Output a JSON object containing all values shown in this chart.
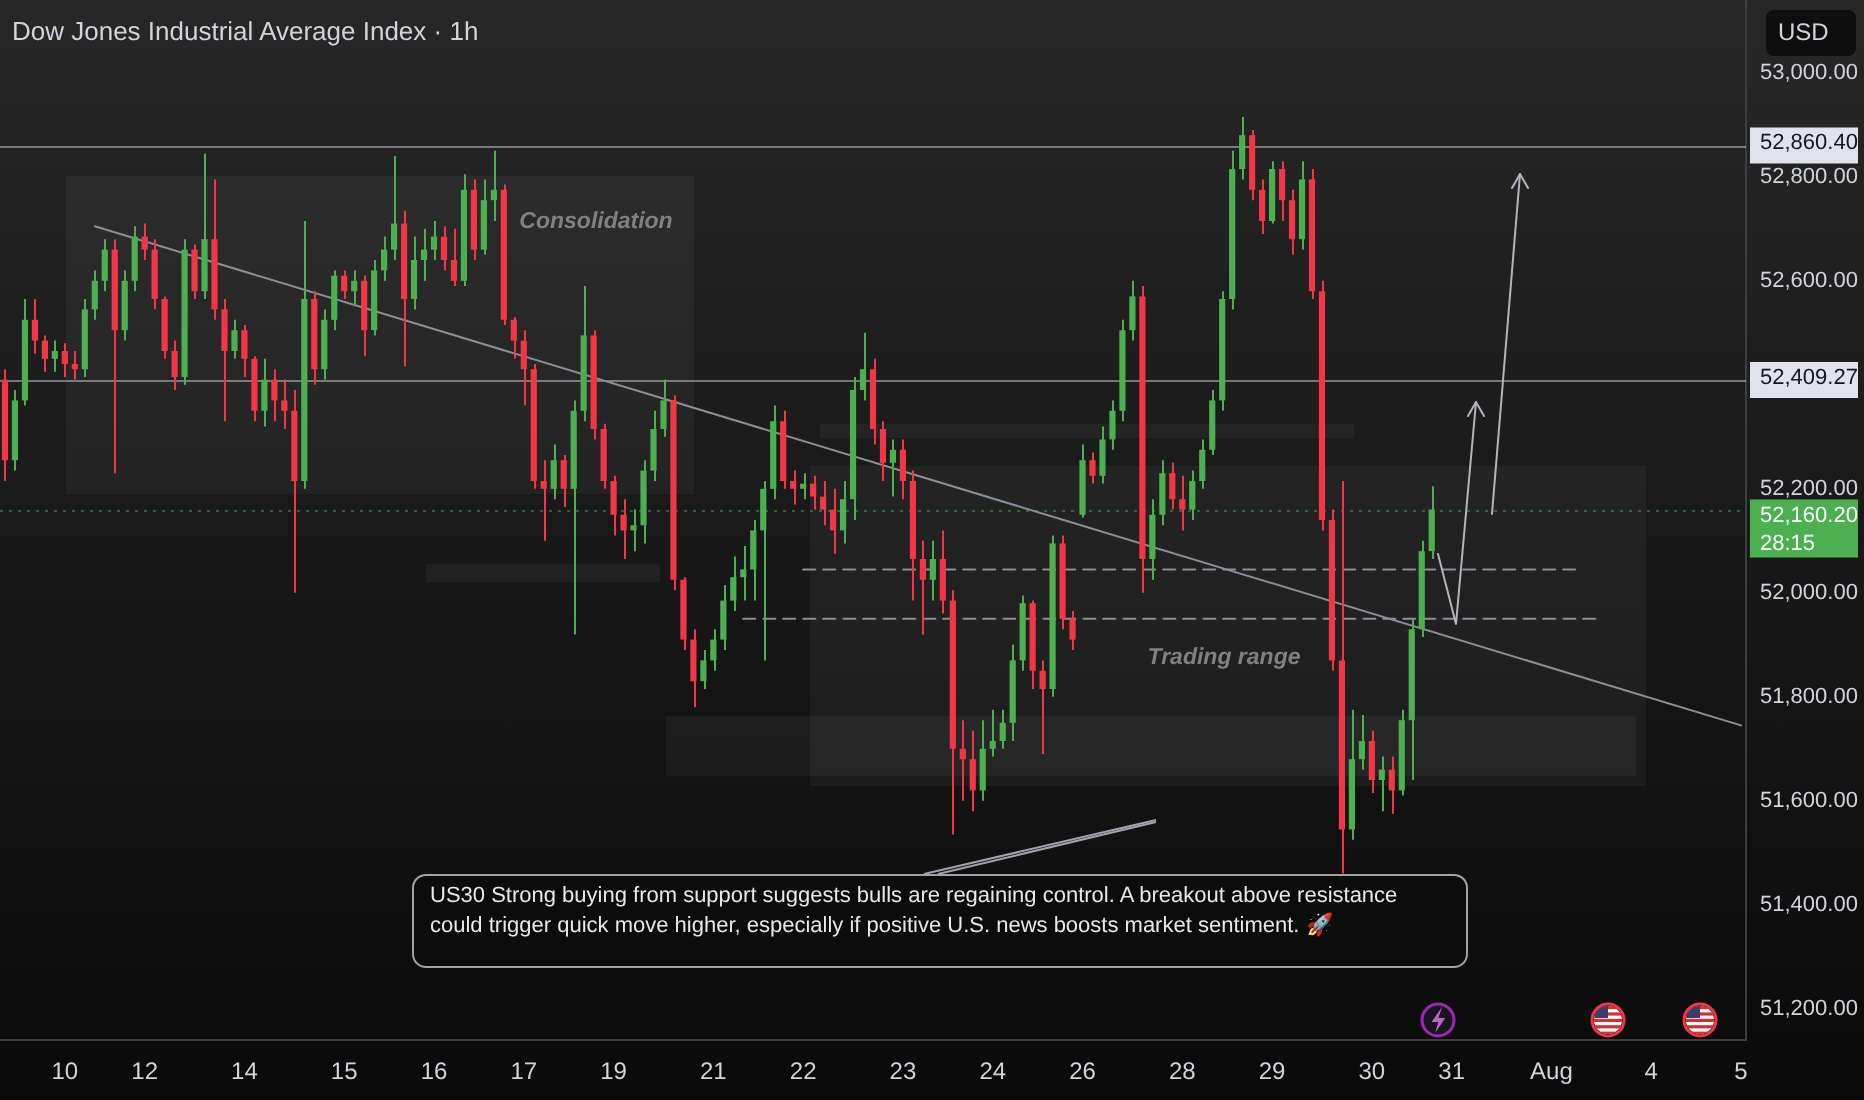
{
  "chart_data": {
    "type": "candlestick",
    "title": "Dow Jones Industrial Average Index · 1h",
    "ylabel": "USD",
    "categories": [
      null,
      null,
      null,
      null,
      null,
      null,
      "10",
      null,
      null,
      null,
      null,
      null,
      null,
      null,
      "12",
      null,
      null,
      null,
      null,
      null,
      null,
      null,
      null,
      null,
      "14",
      null,
      null,
      null,
      null,
      null,
      null,
      null,
      null,
      null,
      "15",
      null,
      null,
      null,
      null,
      null,
      null,
      null,
      null,
      "16",
      null,
      null,
      null,
      null,
      null,
      null,
      null,
      null,
      "17",
      null,
      null,
      null,
      null,
      null,
      null,
      null,
      null,
      "19",
      null,
      null,
      null,
      null,
      null,
      null,
      null,
      null,
      null,
      "21",
      null,
      null,
      null,
      null,
      null,
      null,
      null,
      null,
      "22",
      null,
      null,
      null,
      null,
      null,
      null,
      null,
      null,
      null,
      "23",
      null,
      null,
      null,
      null,
      null,
      null,
      null,
      null,
      "24",
      null,
      null,
      null,
      null,
      null,
      null,
      null,
      null,
      "26",
      null,
      null,
      null,
      null,
      null,
      null,
      null,
      null,
      null,
      "28",
      null,
      null,
      null,
      null,
      null,
      null,
      null,
      null,
      "29",
      null,
      null,
      null,
      null,
      null,
      null,
      null,
      null,
      null,
      "30",
      null,
      null,
      null,
      null,
      null,
      null,
      null,
      "31",
      null,
      null,
      null,
      null,
      null,
      null,
      null,
      null,
      null,
      "Aug",
      null,
      null,
      null,
      null,
      null,
      null,
      null,
      null,
      null,
      "4",
      null,
      null,
      null,
      null,
      null,
      null,
      null,
      null,
      "5"
    ],
    "ohlc": [
      [
        52410,
        52430,
        52215,
        52255
      ],
      [
        52255,
        52390,
        52235,
        52370
      ],
      [
        52370,
        52565,
        52360,
        52525
      ],
      [
        52525,
        52565,
        52460,
        52485
      ],
      [
        52485,
        52495,
        52425,
        52450
      ],
      [
        52450,
        52485,
        52425,
        52465
      ],
      [
        52465,
        52480,
        52415,
        52440
      ],
      [
        52440,
        52465,
        52410,
        52430
      ],
      [
        52430,
        52565,
        52415,
        52545
      ],
      [
        52545,
        52620,
        52525,
        52600
      ],
      [
        52600,
        52680,
        52580,
        52660
      ],
      [
        52660,
        52680,
        52230,
        52505
      ],
      [
        52505,
        52620,
        52485,
        52600
      ],
      [
        52600,
        52705,
        52580,
        52685
      ],
      [
        52685,
        52710,
        52640,
        52660
      ],
      [
        52660,
        52680,
        52545,
        52565
      ],
      [
        52565,
        52570,
        52450,
        52465
      ],
      [
        52465,
        52485,
        52390,
        52415
      ],
      [
        52415,
        52680,
        52400,
        52660
      ],
      [
        52660,
        52670,
        52565,
        52580
      ],
      [
        52580,
        52845,
        52565,
        52680
      ],
      [
        52680,
        52795,
        52525,
        52545
      ],
      [
        52545,
        52565,
        52330,
        52465
      ],
      [
        52465,
        52525,
        52450,
        52505
      ],
      [
        52505,
        52515,
        52415,
        52450
      ],
      [
        52450,
        52455,
        52330,
        52350
      ],
      [
        52350,
        52450,
        52320,
        52410
      ],
      [
        52410,
        52430,
        52330,
        52370
      ],
      [
        52370,
        52410,
        52315,
        52350
      ],
      [
        52350,
        52390,
        52000,
        52215
      ],
      [
        52215,
        52715,
        52200,
        52565
      ],
      [
        52565,
        52580,
        52400,
        52430
      ],
      [
        52430,
        52545,
        52410,
        52525
      ],
      [
        52525,
        52620,
        52505,
        52610
      ],
      [
        52610,
        52620,
        52565,
        52580
      ],
      [
        52580,
        52620,
        52555,
        52600
      ],
      [
        52600,
        52610,
        52455,
        52505
      ],
      [
        52505,
        52640,
        52495,
        52620
      ],
      [
        52620,
        52685,
        52600,
        52660
      ],
      [
        52660,
        52840,
        52640,
        52710
      ],
      [
        52710,
        52735,
        52435,
        52565
      ],
      [
        52565,
        52685,
        52545,
        52640
      ],
      [
        52640,
        52700,
        52600,
        52660
      ],
      [
        52660,
        52715,
        52640,
        52685
      ],
      [
        52685,
        52705,
        52620,
        52640
      ],
      [
        52640,
        52700,
        52590,
        52600
      ],
      [
        52600,
        52805,
        52590,
        52775
      ],
      [
        52775,
        52795,
        52640,
        52660
      ],
      [
        52660,
        52795,
        52650,
        52755
      ],
      [
        52755,
        52850,
        52715,
        52775
      ],
      [
        52775,
        52785,
        52515,
        52525
      ],
      [
        52525,
        52530,
        52450,
        52485
      ],
      [
        52485,
        52505,
        52360,
        52430
      ],
      [
        52430,
        52440,
        52200,
        52215
      ],
      [
        52215,
        52255,
        52100,
        52200
      ],
      [
        52200,
        52285,
        52180,
        52255
      ],
      [
        52255,
        52265,
        52165,
        52200
      ],
      [
        52200,
        52370,
        51920,
        52350
      ],
      [
        52350,
        52590,
        52330,
        52495
      ],
      [
        52495,
        52505,
        52295,
        52315
      ],
      [
        52315,
        52325,
        52200,
        52215
      ],
      [
        52215,
        52225,
        52110,
        52150
      ],
      [
        52150,
        52180,
        52065,
        52120
      ],
      [
        52120,
        52160,
        52080,
        52130
      ],
      [
        52130,
        52255,
        52095,
        52235
      ],
      [
        52235,
        52350,
        52215,
        52315
      ],
      [
        52315,
        52410,
        52300,
        52370
      ],
      [
        52370,
        52380,
        52005,
        52025
      ],
      [
        52025,
        52030,
        51890,
        51910
      ],
      [
        51910,
        51930,
        51780,
        51830
      ],
      [
        51830,
        51890,
        51815,
        51870
      ],
      [
        51870,
        51930,
        51850,
        51910
      ],
      [
        51910,
        52015,
        51890,
        51985
      ],
      [
        51985,
        52070,
        51965,
        52030
      ],
      [
        52030,
        52090,
        51985,
        52045
      ],
      [
        52045,
        52140,
        51985,
        52120
      ],
      [
        52120,
        52215,
        51870,
        52200
      ],
      [
        52200,
        52360,
        52180,
        52330
      ],
      [
        52330,
        52350,
        52200,
        52215
      ],
      [
        52215,
        52235,
        52170,
        52200
      ],
      [
        52200,
        52230,
        52180,
        52210
      ],
      [
        52210,
        52225,
        52160,
        52185
      ],
      [
        52185,
        52215,
        52130,
        52160
      ],
      [
        52160,
        52200,
        52075,
        52120
      ],
      [
        52120,
        52215,
        52095,
        52180
      ],
      [
        52180,
        52415,
        52140,
        52390
      ],
      [
        52390,
        52500,
        52370,
        52430
      ],
      [
        52430,
        52450,
        52285,
        52315
      ],
      [
        52315,
        52330,
        52215,
        52250
      ],
      [
        52250,
        52295,
        52185,
        52275
      ],
      [
        52275,
        52295,
        52180,
        52215
      ],
      [
        52215,
        52235,
        51985,
        52065
      ],
      [
        52065,
        52100,
        51920,
        52025
      ],
      [
        52025,
        52100,
        51985,
        52065
      ],
      [
        52065,
        52120,
        51960,
        51985
      ],
      [
        51985,
        52005,
        51535,
        51700
      ],
      [
        51700,
        51755,
        51600,
        51680
      ],
      [
        51680,
        51735,
        51580,
        51620
      ],
      [
        51620,
        51755,
        51600,
        51700
      ],
      [
        51700,
        51775,
        51685,
        51715
      ],
      [
        51715,
        51775,
        51700,
        51750
      ],
      [
        51750,
        51900,
        51715,
        51870
      ],
      [
        51870,
        51995,
        51850,
        51980
      ],
      [
        51980,
        51985,
        51815,
        51850
      ],
      [
        51850,
        51870,
        51690,
        51815
      ],
      [
        51815,
        52110,
        51800,
        52095
      ],
      [
        52095,
        52110,
        51930,
        51950
      ],
      [
        51950,
        51965,
        51890,
        51910
      ],
      [
        52150,
        52285,
        52145,
        52255
      ],
      [
        52255,
        52270,
        52210,
        52225
      ],
      [
        52225,
        52320,
        52210,
        52295
      ],
      [
        52295,
        52370,
        52275,
        52350
      ],
      [
        52350,
        52525,
        52330,
        52505
      ],
      [
        52505,
        52600,
        52485,
        52570
      ],
      [
        52570,
        52590,
        52000,
        52065
      ],
      [
        52065,
        52180,
        52025,
        52150
      ],
      [
        52150,
        52255,
        52130,
        52230
      ],
      [
        52230,
        52250,
        52160,
        52180
      ],
      [
        52180,
        52225,
        52120,
        52160
      ],
      [
        52160,
        52235,
        52140,
        52215
      ],
      [
        52215,
        52295,
        52200,
        52275
      ],
      [
        52275,
        52390,
        52265,
        52370
      ],
      [
        52370,
        52580,
        52350,
        52565
      ],
      [
        52565,
        52850,
        52545,
        52815
      ],
      [
        52815,
        52915,
        52795,
        52880
      ],
      [
        52880,
        52890,
        52755,
        52775
      ],
      [
        52775,
        52795,
        52690,
        52715
      ],
      [
        52715,
        52830,
        52710,
        52815
      ],
      [
        52815,
        52830,
        52715,
        52755
      ],
      [
        52755,
        52775,
        52650,
        52680
      ],
      [
        52680,
        52830,
        52660,
        52795
      ],
      [
        52795,
        52815,
        52565,
        52580
      ],
      [
        52580,
        52600,
        52120,
        52140
      ],
      [
        52140,
        52160,
        51850,
        51870
      ],
      [
        51870,
        52215,
        51460,
        51545
      ],
      [
        51545,
        51775,
        51525,
        51680
      ],
      [
        51680,
        51765,
        51660,
        51715
      ],
      [
        51715,
        51735,
        51615,
        51640
      ],
      [
        51640,
        51685,
        51580,
        51660
      ],
      [
        51660,
        51685,
        51575,
        51620
      ],
      [
        51620,
        51775,
        51610,
        51755
      ],
      [
        51755,
        51950,
        51640,
        51930
      ],
      [
        51930,
        52100,
        51915,
        52080
      ],
      [
        52080,
        52205,
        52065,
        52160.2
      ],
      null,
      null,
      null,
      null,
      null,
      null,
      null,
      null,
      null,
      null,
      null,
      null,
      null,
      null,
      null,
      null,
      null,
      null,
      null,
      null,
      null,
      null,
      null,
      null,
      null,
      null,
      null,
      null,
      null,
      null,
      null
    ],
    "colors": [
      "#f23645",
      "#4caf50",
      "#4caf50",
      "#f23645",
      "#f23645",
      "#4caf50",
      "#f23645",
      "#f23645",
      "#4caf50",
      "#4caf50",
      "#4caf50",
      "#f23645",
      "#4caf50",
      "#4caf50",
      "#f23645",
      "#f23645",
      "#f23645",
      "#f23645",
      "#4caf50",
      "#f23645",
      "#4caf50",
      "#f23645",
      "#f23645",
      "#4caf50",
      "#f23645",
      "#f23645",
      "#4caf50",
      "#f23645",
      "#f23645",
      "#f23645",
      "#4caf50",
      "#f23645",
      "#4caf50",
      "#4caf50",
      "#f23645",
      "#4caf50",
      "#f23645",
      "#4caf50",
      "#4caf50",
      "#4caf50",
      "#f23645",
      "#4caf50",
      "#4caf50",
      "#4caf50",
      "#f23645",
      "#f23645",
      "#4caf50",
      "#f23645",
      "#4caf50",
      "#4caf50",
      "#f23645",
      "#f23645",
      "#f23645",
      "#f23645",
      "#f23645",
      "#4caf50",
      "#f23645",
      "#4caf50",
      "#4caf50",
      "#f23645",
      "#f23645",
      "#f23645",
      "#f23645",
      "#4caf50",
      "#4caf50",
      "#4caf50",
      "#4caf50",
      "#f23645",
      "#f23645",
      "#f23645",
      "#4caf50",
      "#4caf50",
      "#4caf50",
      "#4caf50",
      "#4caf50",
      "#4caf50",
      "#4caf50",
      "#4caf50",
      "#f23645",
      "#f23645",
      "#4caf50",
      "#f23645",
      "#f23645",
      "#f23645",
      "#4caf50",
      "#4caf50",
      "#4caf50",
      "#f23645",
      "#f23645",
      "#4caf50",
      "#f23645",
      "#f23645",
      "#f23645",
      "#4caf50",
      "#f23645",
      "#f23645",
      "#f23645",
      "#f23645",
      "#4caf50",
      "#4caf50",
      "#4caf50",
      "#4caf50",
      "#4caf50",
      "#f23645",
      "#f23645",
      "#4caf50",
      "#f23645",
      "#f23645",
      "#4caf50",
      "#f23645",
      "#4caf50",
      "#4caf50",
      "#4caf50",
      "#4caf50",
      "#f23645",
      "#4caf50",
      "#4caf50",
      "#f23645",
      "#f23645",
      "#4caf50",
      "#4caf50",
      "#4caf50",
      "#4caf50",
      "#4caf50",
      "#4caf50",
      "#f23645",
      "#f23645",
      "#4caf50",
      "#f23645",
      "#f23645",
      "#4caf50",
      "#f23645",
      "#f23645",
      "#f23645",
      "#f23645",
      "#4caf50",
      "#4caf50",
      "#f23645",
      "#4caf50",
      "#f23645",
      "#4caf50",
      "#4caf50",
      "#4caf50",
      "#4caf50",
      null,
      null,
      null,
      null,
      null,
      null,
      null,
      null,
      null,
      null,
      null,
      null,
      null,
      null,
      null,
      null,
      null,
      null,
      null,
      null,
      null,
      null,
      null,
      null,
      null,
      null,
      null,
      null,
      null,
      null,
      null
    ],
    "series": [
      {
        "type": "line",
        "color": "#8c8f99",
        "values": [
          null,
          null,
          null,
          null,
          null,
          null,
          null,
          null,
          null,
          52705,
          null,
          null,
          null,
          null,
          null,
          null,
          null,
          null,
          null,
          null,
          null,
          null,
          null,
          null,
          null,
          null,
          null,
          null,
          null,
          null,
          null,
          null,
          null,
          null,
          null,
          null,
          null,
          null,
          null,
          null,
          null,
          null,
          null,
          null,
          null,
          null,
          null,
          null,
          null,
          null,
          null,
          null,
          null,
          null,
          null,
          null,
          null,
          null,
          null,
          null,
          null,
          null,
          null,
          null,
          null,
          null,
          null,
          null,
          null,
          null,
          null,
          null,
          null,
          null,
          null,
          null,
          null,
          null,
          null,
          null,
          null,
          null,
          null,
          null,
          null,
          null,
          null,
          null,
          null,
          null,
          null,
          null,
          null,
          null,
          null,
          null,
          null,
          null,
          null,
          null,
          null,
          null,
          null,
          null,
          null,
          null,
          null,
          null,
          null,
          null,
          null,
          null,
          null,
          null,
          null,
          null,
          null,
          null,
          null,
          null,
          null,
          null,
          null,
          null,
          null,
          null,
          null,
          null,
          null,
          null,
          null,
          null,
          null,
          null,
          null,
          null,
          null,
          null,
          null,
          null,
          null,
          null,
          null,
          null,
          null,
          null,
          null,
          null,
          null,
          null,
          null,
          null,
          null,
          null,
          null,
          null,
          null,
          null,
          null,
          null,
          null,
          null,
          null,
          null,
          null,
          null,
          null,
          null,
          null,
          null,
          null,
          null,
          null,
          null,
          51745
        ]
      },
      {
        "type": "line",
        "color": "#8c8f99",
        "line_style": "dashed",
        "values": [
          null,
          null,
          null,
          null,
          null,
          null,
          null,
          null,
          null,
          null,
          null,
          null,
          null,
          null,
          null,
          null,
          null,
          null,
          null,
          null,
          null,
          null,
          null,
          null,
          null,
          null,
          null,
          null,
          null,
          null,
          null,
          null,
          null,
          null,
          null,
          null,
          null,
          null,
          null,
          null,
          null,
          null,
          null,
          null,
          null,
          null,
          null,
          null,
          null,
          null,
          null,
          null,
          null,
          null,
          null,
          null,
          null,
          null,
          null,
          null,
          null,
          null,
          null,
          null,
          null,
          null,
          null,
          null,
          null,
          null,
          null,
          null,
          null,
          null,
          null,
          null,
          null,
          null,
          null,
          null,
          52045,
          null,
          null,
          null,
          null,
          null,
          null,
          null,
          null,
          null,
          null,
          null,
          null,
          null,
          null,
          null,
          null,
          null,
          null,
          null,
          null,
          null,
          null,
          null,
          null,
          null,
          null,
          null,
          null,
          null,
          null,
          null,
          null,
          null,
          null,
          null,
          null,
          null,
          null,
          null,
          null,
          null,
          null,
          null,
          null,
          null,
          null,
          null,
          null,
          null,
          null,
          null,
          null,
          null,
          null,
          null,
          null,
          null,
          null,
          null,
          null,
          null,
          null,
          null,
          null,
          null,
          null,
          null,
          null,
          null,
          null,
          null,
          null,
          null,
          null,
          null,
          null,
          null,
          52045,
          null,
          null,
          null,
          null,
          null,
          null,
          null,
          null,
          null,
          null,
          null,
          null,
          null,
          null,
          null,
          null
        ]
      },
      {
        "type": "line",
        "color": "#8c8f99",
        "line_style": "dashed",
        "values": [
          null,
          null,
          null,
          null,
          null,
          null,
          null,
          null,
          null,
          null,
          null,
          null,
          null,
          null,
          null,
          null,
          null,
          null,
          null,
          null,
          null,
          null,
          null,
          null,
          null,
          null,
          null,
          null,
          null,
          null,
          null,
          null,
          null,
          null,
          null,
          null,
          null,
          null,
          null,
          null,
          null,
          null,
          null,
          null,
          null,
          null,
          null,
          null,
          null,
          null,
          null,
          null,
          null,
          null,
          null,
          null,
          null,
          null,
          null,
          null,
          null,
          null,
          null,
          null,
          null,
          null,
          null,
          null,
          null,
          null,
          null,
          null,
          null,
          null,
          51950,
          null,
          null,
          null,
          null,
          null,
          null,
          null,
          null,
          null,
          null,
          null,
          null,
          null,
          null,
          null,
          null,
          null,
          null,
          null,
          null,
          null,
          null,
          null,
          null,
          null,
          null,
          null,
          null,
          null,
          null,
          null,
          null,
          null,
          null,
          null,
          null,
          null,
          null,
          null,
          null,
          null,
          null,
          null,
          null,
          null,
          null,
          null,
          null,
          null,
          null,
          null,
          null,
          null,
          null,
          null,
          null,
          null,
          null,
          null,
          null,
          null,
          null,
          null,
          null,
          null,
          null,
          null,
          null,
          null,
          null,
          null,
          null,
          null,
          null,
          null,
          null,
          null,
          null,
          null,
          null,
          null,
          null,
          null,
          null,
          null,
          51950,
          null,
          null,
          null,
          null,
          null,
          null,
          null,
          null,
          null,
          null,
          null,
          null,
          null,
          null
        ]
      }
    ],
    "ylim": [
      51140,
      53140
    ],
    "yticks": [
      {
        "value": 51200,
        "label": "51,200.00"
      },
      {
        "value": 51400,
        "label": "51,400.00"
      },
      {
        "value": 51600,
        "label": "51,600.00"
      },
      {
        "value": 51800,
        "label": "51,800.00"
      },
      {
        "value": 52000,
        "label": "52,000.00"
      },
      {
        "value": 52200,
        "label": "52,200.00"
      },
      {
        "value": 52600,
        "label": "52,600.00"
      },
      {
        "value": 52800,
        "label": "52,800.00"
      },
      {
        "value": 53000,
        "label": "53,000.00"
      }
    ],
    "ref_lines": [
      {
        "axis": "y",
        "value": 52860.4,
        "label": "52,860.40",
        "color": "#e0e3eb"
      },
      {
        "axis": "y",
        "value": 52409.27,
        "label": "52,409.27",
        "color": "#e0e3eb"
      },
      {
        "axis": "y",
        "value": 52160.2,
        "label": "52,160.20",
        "color": "#4caf50",
        "line_style": "dotted"
      }
    ],
    "annotations": [
      "Consolidation",
      "Trading range",
      "US30 Strong buying from support suggests bulls are regaining control. A breakout above resistance could trigger quick move higher, especially if positive U.S. news boosts market sentiment. 🚀",
      "28:15"
    ]
  }
}
